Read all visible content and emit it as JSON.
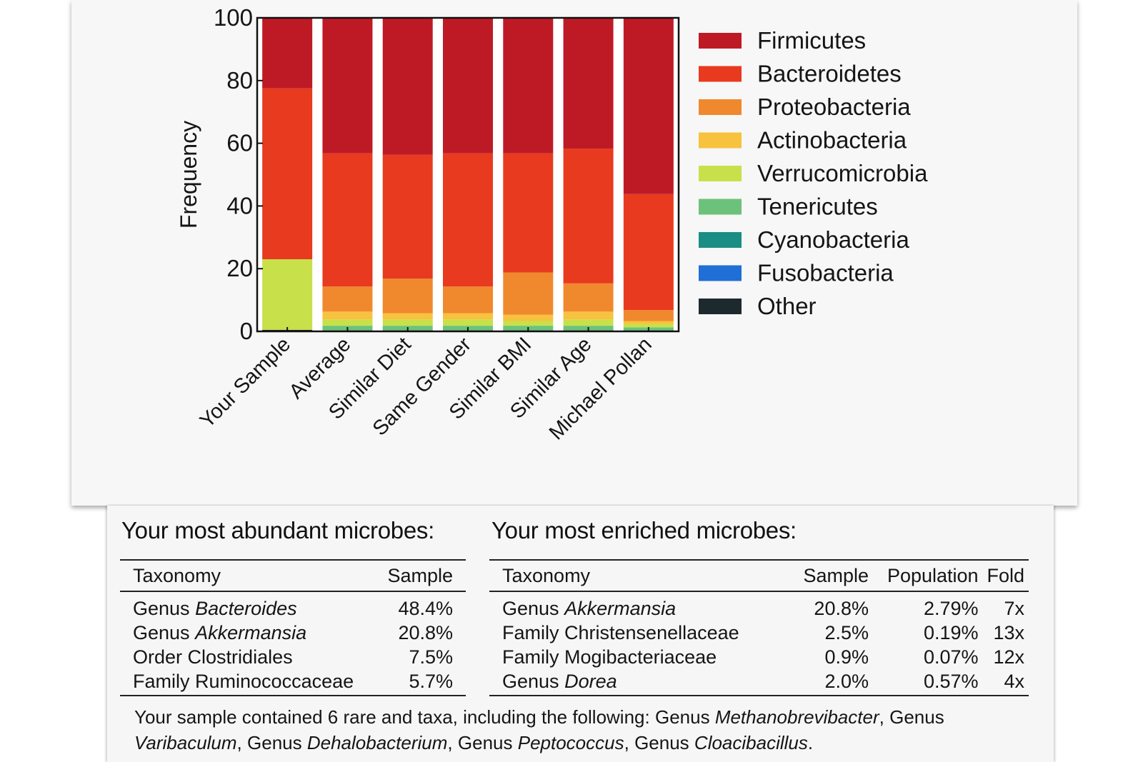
{
  "chart_data": {
    "type": "bar",
    "stacked": true,
    "ylabel": "Frequency",
    "ylim": [
      0,
      100
    ],
    "yticks": [
      0,
      20,
      40,
      60,
      80,
      100
    ],
    "categories": [
      "Your Sample",
      "Average",
      "Similar Diet",
      "Same Gender",
      "Similar BMI",
      "Similar Age",
      "Michael Pollan"
    ],
    "legend_position": "right",
    "series": [
      {
        "name": "Other",
        "color": "#1c2a2e",
        "values": [
          0.5,
          0.3,
          0.3,
          0.3,
          0.3,
          0.3,
          0.3
        ]
      },
      {
        "name": "Fusobacteria",
        "color": "#1f6fd6",
        "values": [
          0,
          0,
          0,
          0,
          0,
          0,
          0
        ]
      },
      {
        "name": "Cyanobacteria",
        "color": "#1a8d84",
        "values": [
          0,
          0,
          0,
          0,
          0,
          0,
          0
        ]
      },
      {
        "name": "Tenericutes",
        "color": "#6cc27a",
        "values": [
          0,
          1.5,
          1.5,
          1.5,
          1.5,
          1.5,
          1
        ]
      },
      {
        "name": "Verrucomicrobia",
        "color": "#c8e04a",
        "values": [
          22.5,
          2,
          2,
          2,
          1.5,
          2,
          1
        ]
      },
      {
        "name": "Actinobacteria",
        "color": "#f7c23d",
        "values": [
          0,
          2.5,
          2,
          2,
          2,
          2.5,
          1
        ]
      },
      {
        "name": "Proteobacteria",
        "color": "#f0882e",
        "values": [
          0,
          8,
          11,
          8.5,
          13.5,
          9,
          3.5
        ]
      },
      {
        "name": "Bacteroidetes",
        "color": "#e83a1e",
        "values": [
          54.5,
          42.5,
          39.5,
          42.5,
          38,
          43,
          37
        ]
      },
      {
        "name": "Firmicutes",
        "color": "#be1a26",
        "values": [
          22.5,
          43.2,
          43.7,
          43.2,
          43.2,
          41.7,
          56.2
        ]
      }
    ],
    "legend_order": [
      "Firmicutes",
      "Bacteroidetes",
      "Proteobacteria",
      "Actinobacteria",
      "Verrucomicrobia",
      "Tenericutes",
      "Cyanobacteria",
      "Fusobacteria",
      "Other"
    ]
  },
  "abundant": {
    "title": "Your most abundant microbes:",
    "headers": {
      "taxonomy": "Taxonomy",
      "sample": "Sample"
    },
    "rows": [
      {
        "rank": "Genus",
        "name": "Bacteroides",
        "sample": "48.4%"
      },
      {
        "rank": "Genus",
        "name": "Akkermansia",
        "sample": "20.8%"
      },
      {
        "rank": "Order",
        "name": "Clostridiales",
        "sample": "7.5%"
      },
      {
        "rank": "Family",
        "name": "Ruminococcaceae",
        "sample": "5.7%"
      }
    ]
  },
  "enriched": {
    "title": "Your most enriched microbes:",
    "headers": {
      "taxonomy": "Taxonomy",
      "sample": "Sample",
      "population": "Population",
      "fold": "Fold"
    },
    "rows": [
      {
        "rank": "Genus",
        "name": "Akkermansia",
        "sample": "20.8%",
        "population": "2.79%",
        "fold": "7x"
      },
      {
        "rank": "Family",
        "name": "Christensenellaceae",
        "sample": "2.5%",
        "population": "0.19%",
        "fold": "13x"
      },
      {
        "rank": "Family",
        "name": "Mogibacteriaceae",
        "sample": "0.9%",
        "population": "0.07%",
        "fold": "12x"
      },
      {
        "rank": "Genus",
        "name": "Dorea",
        "sample": "2.0%",
        "population": "0.57%",
        "fold": "4x"
      }
    ]
  },
  "rare": {
    "intro": "Your sample contained 6 rare and taxa, including the following:",
    "genus_word": "Genus",
    "taxa": [
      "Methanobrevibacter",
      "Varibaculum",
      "Dehalobacterium",
      "Peptococcus",
      "Cloacibacillus"
    ]
  }
}
